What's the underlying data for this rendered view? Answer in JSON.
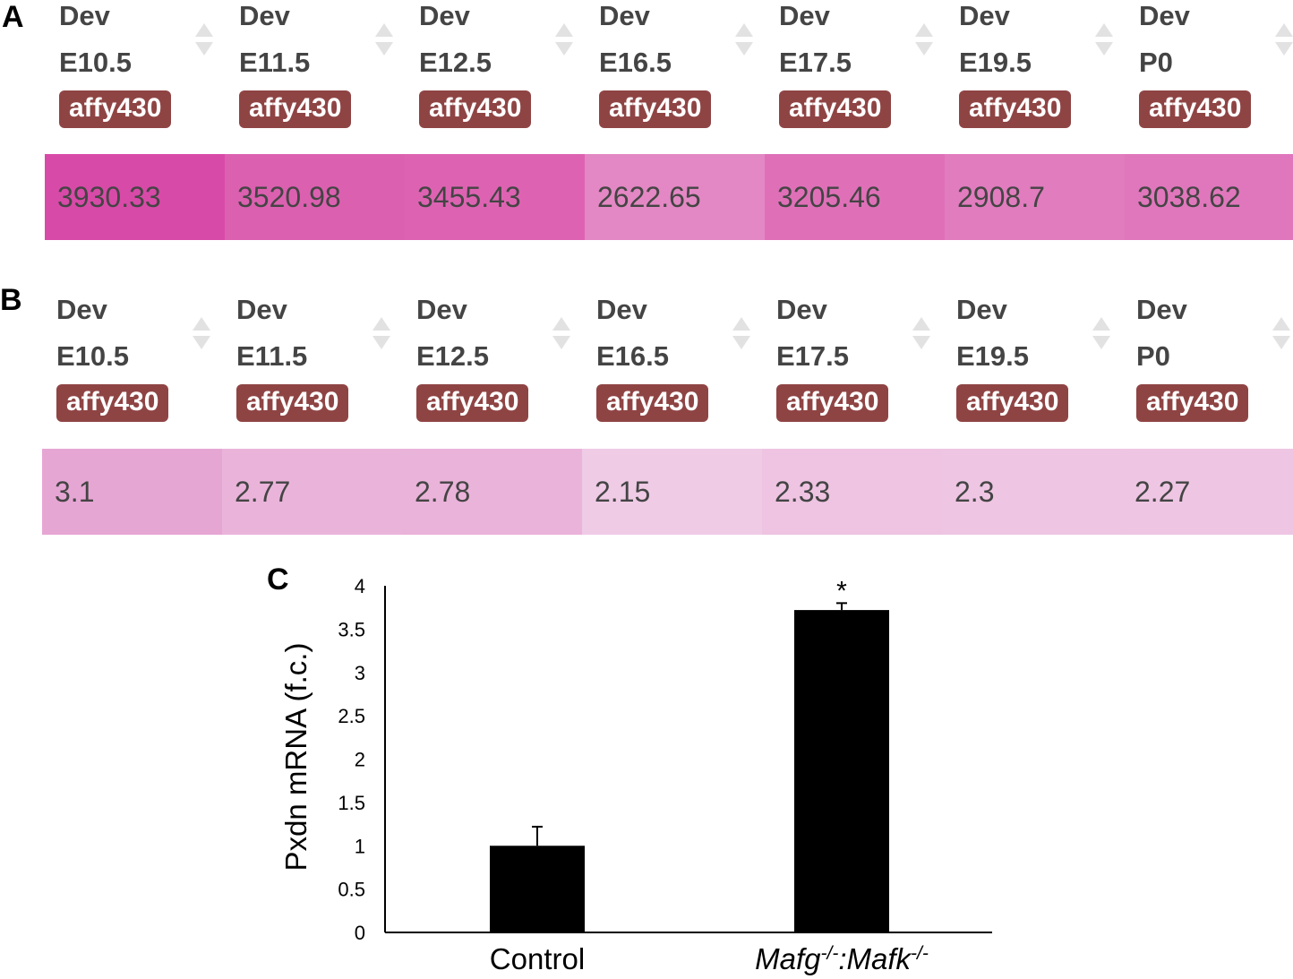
{
  "panel_a": {
    "letter": "A",
    "columns": [
      {
        "line1": "Dev",
        "line2": "E10.5",
        "badge": "affy430",
        "value": "3930.33",
        "color": "#d84aa8"
      },
      {
        "line1": "Dev",
        "line2": "E11.5",
        "badge": "affy430",
        "value": "3520.98",
        "color": "#dc60b0"
      },
      {
        "line1": "Dev",
        "line2": "E12.5",
        "badge": "affy430",
        "value": "3455.43",
        "color": "#dd63b2"
      },
      {
        "line1": "Dev",
        "line2": "E16.5",
        "badge": "affy430",
        "value": "2622.65",
        "color": "#e388c4"
      },
      {
        "line1": "Dev",
        "line2": "E17.5",
        "badge": "affy430",
        "value": "3205.46",
        "color": "#df70b8"
      },
      {
        "line1": "Dev",
        "line2": "E19.5",
        "badge": "affy430",
        "value": "2908.7",
        "color": "#e17cbe"
      },
      {
        "line1": "Dev",
        "line2": "P0",
        "badge": "affy430",
        "value": "3038.62",
        "color": "#e077bc"
      }
    ]
  },
  "panel_b": {
    "letter": "B",
    "columns": [
      {
        "line1": "Dev",
        "line2": "E10.5",
        "badge": "affy430",
        "value": "3.1",
        "color": "#e6a6d4"
      },
      {
        "line1": "Dev",
        "line2": "E11.5",
        "badge": "affy430",
        "value": "2.77",
        "color": "#eab4da"
      },
      {
        "line1": "Dev",
        "line2": "E12.5",
        "badge": "affy430",
        "value": "2.78",
        "color": "#eab3da"
      },
      {
        "line1": "Dev",
        "line2": "E16.5",
        "badge": "affy430",
        "value": "2.15",
        "color": "#efcbe6"
      },
      {
        "line1": "Dev",
        "line2": "E17.5",
        "badge": "affy430",
        "value": "2.33",
        "color": "#eec4e2"
      },
      {
        "line1": "Dev",
        "line2": "E19.5",
        "badge": "affy430",
        "value": "2.3",
        "color": "#eec5e3"
      },
      {
        "line1": "Dev",
        "line2": "P0",
        "badge": "affy430",
        "value": "2.27",
        "color": "#eec6e3"
      }
    ]
  },
  "chart_data": {
    "panel_letter": "C",
    "type": "bar",
    "title": "",
    "xlabel": "",
    "ylabel": "Pxdn mRNA (f.c.)",
    "ylim": [
      0,
      4
    ],
    "yticks": [
      "0",
      "0.5",
      "1",
      "1.5",
      "2",
      "2.5",
      "3",
      "3.5",
      "4"
    ],
    "categories": [
      "Control",
      "Mafg-/-:Mafk-/-"
    ],
    "category_parts": [
      [
        {
          "text": "Control",
          "italic": false,
          "sup": false
        }
      ],
      [
        {
          "text": "Mafg",
          "italic": true,
          "sup": false
        },
        {
          "text": "-/-",
          "italic": true,
          "sup": true
        },
        {
          "text": ":Mafk",
          "italic": true,
          "sup": false
        },
        {
          "text": "-/-",
          "italic": true,
          "sup": true
        }
      ]
    ],
    "values": [
      1.0,
      3.72
    ],
    "errors": [
      0.22,
      0.08
    ],
    "annotations": [
      "",
      "*"
    ],
    "bar_color": "#000000"
  }
}
